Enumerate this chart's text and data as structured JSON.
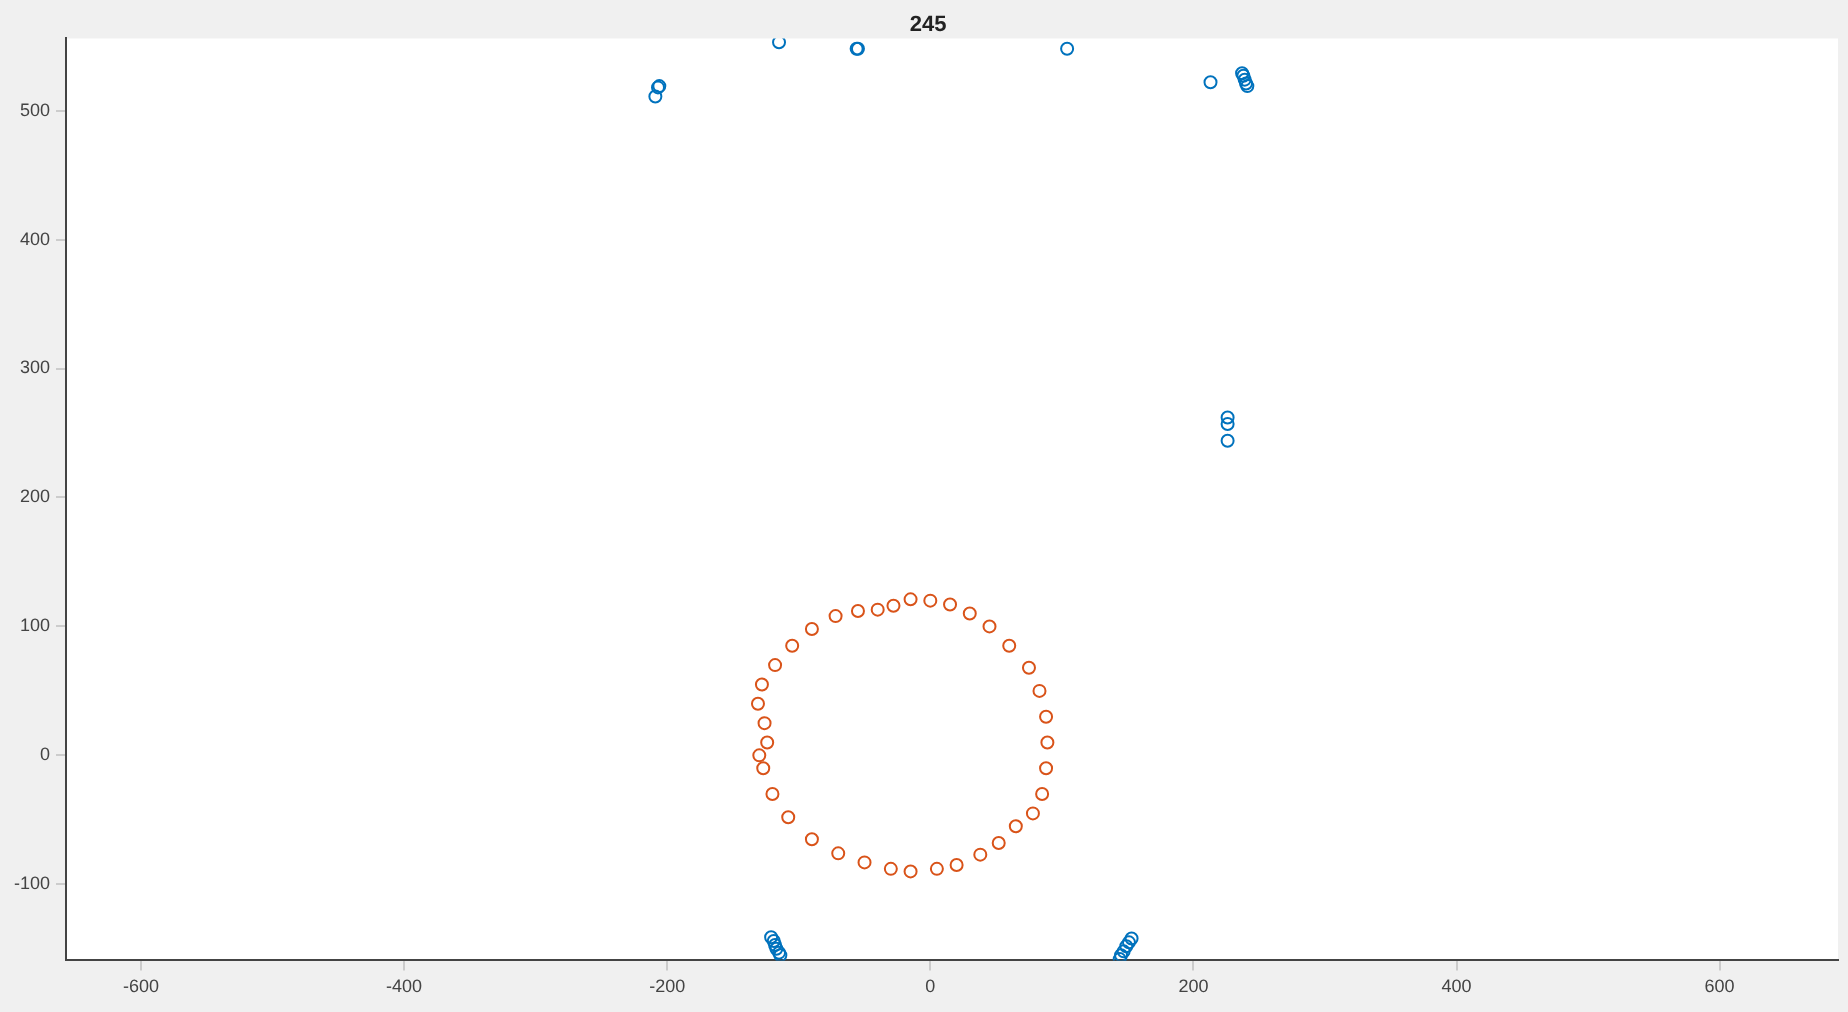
{
  "chart_data": {
    "type": "scatter",
    "title": "245",
    "xlim": [
      -657,
      690
    ],
    "ylim": [
      -159,
      556
    ],
    "xticks": [
      -600,
      -400,
      -200,
      0,
      200,
      400,
      600
    ],
    "yticks": [
      -100,
      0,
      100,
      200,
      300,
      400,
      500
    ],
    "grid": false,
    "legend": false,
    "marker": "circle",
    "series": [
      {
        "color": "#0072bd",
        "x": [
          -207,
          -206,
          -209,
          -115,
          -56,
          -55,
          104,
          213,
          237,
          238,
          239,
          240,
          241,
          226,
          226,
          226,
          -121,
          -119,
          -118,
          -117,
          -115,
          -114,
          144,
          145,
          147,
          149,
          151,
          153
        ],
        "values": [
          518,
          519,
          511,
          553,
          548,
          548,
          548,
          522,
          529,
          527,
          524,
          521,
          519,
          262,
          257,
          244,
          -141,
          -144,
          -147,
          -150,
          -153,
          -155,
          -158,
          -155,
          -152,
          -148,
          -145,
          -142
        ]
      },
      {
        "color": "#d95319",
        "x": [
          -15,
          0,
          15,
          30,
          45,
          60,
          75,
          83,
          88,
          89,
          88,
          85,
          78,
          65,
          52,
          38,
          20,
          5,
          -15,
          -30,
          -50,
          -70,
          -90,
          -108,
          -120,
          -127,
          -130,
          -124,
          -126,
          -131,
          -128,
          -118,
          -105,
          -90,
          -72,
          -55,
          -40,
          -28
        ],
        "values": [
          121,
          120,
          117,
          110,
          100,
          85,
          68,
          50,
          30,
          10,
          -10,
          -30,
          -45,
          -55,
          -68,
          -77,
          -85,
          -88,
          -90,
          -88,
          -83,
          -76,
          -65,
          -48,
          -30,
          -10,
          0,
          10,
          25,
          40,
          55,
          70,
          85,
          98,
          108,
          112,
          113,
          116
        ]
      }
    ]
  }
}
